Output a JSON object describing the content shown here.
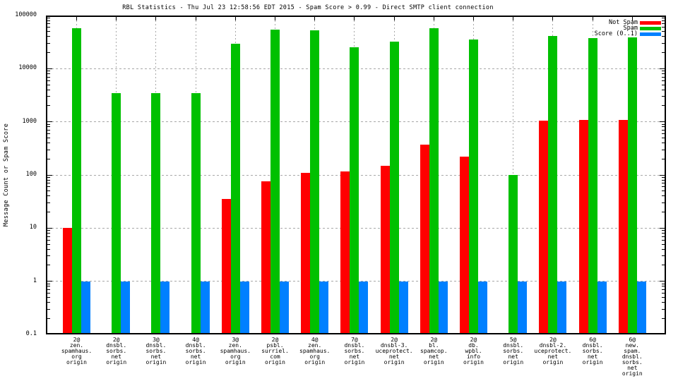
{
  "title": "RBL Statistics - Thu Jul 23 12:58:56 EDT 2015 - Spam Score > 0.99 - Direct SMTP client connection",
  "chart_data": {
    "type": "bar",
    "title": "RBL Statistics - Thu Jul 23 12:58:56 EDT 2015 - Spam Score > 0.99 - Direct SMTP client connection",
    "ylabel": "Message Count or Spam Score",
    "xlabel": "",
    "y_scale": "log",
    "ylim": [
      0.1,
      100000
    ],
    "y_ticks": [
      "100000",
      "10000",
      "1000",
      "100",
      "10",
      "1",
      "0.1"
    ],
    "grid": true,
    "legend_position": "top-right-inside",
    "categories": [
      "2@\nzen.\nspamhaus.\norg\norigin",
      "2@\ndnsbl.\nsorbs.\nnet\norigin",
      "3@\ndnsbl.\nsorbs.\nnet\norigin",
      "4@\ndnsbl.\nsorbs.\nnet\norigin",
      "3@\nzen.\nspamhaus.\norg\norigin",
      "2@\npsbl.\nsurriel.\ncom\norigin",
      "4@\nzen.\nspamhaus.\norg\norigin",
      "7@\ndnsbl.\nsorbs.\nnet\norigin",
      "2@\ndnsbl-3.\nuceprotect.\nnet\norigin",
      "2@\nbl.\nspamcop.\nnet\norigin",
      "2@\ndb.\nwpbl.\ninfo\norigin",
      "5@\ndnsbl.\nsorbs.\nnet\norigin",
      "2@\ndnsbl-2.\nuceprotect.\nnet\norigin",
      "6@\ndnsbl.\nsorbs.\nnet\norigin",
      "6@\nnew.\nspam.\ndnsbl.\nsorbs.\nnet\norigin"
    ],
    "series": [
      {
        "name": "Not Spam",
        "color": "#ff0000",
        "values": [
          10,
          null,
          null,
          null,
          35,
          75,
          110,
          115,
          150,
          370,
          220,
          null,
          1050,
          1100,
          1100
        ]
      },
      {
        "name": "Spam",
        "color": "#00c000",
        "values": [
          58000,
          3500,
          3500,
          3500,
          29000,
          54000,
          52000,
          25000,
          32000,
          57000,
          35000,
          100,
          41000,
          38000,
          39000
        ]
      },
      {
        "name": "Score (0..1)",
        "color": "#0080ff",
        "values": [
          1,
          1,
          1,
          1,
          1,
          1,
          1,
          1,
          1,
          1,
          1,
          1,
          1,
          1,
          1
        ]
      }
    ],
    "colors": {
      "background": "#ffffff",
      "axis": "#000000",
      "grid": "#a8a8a8",
      "not_spam": "#ff0000",
      "spam": "#00c000",
      "score": "#0080ff"
    }
  }
}
